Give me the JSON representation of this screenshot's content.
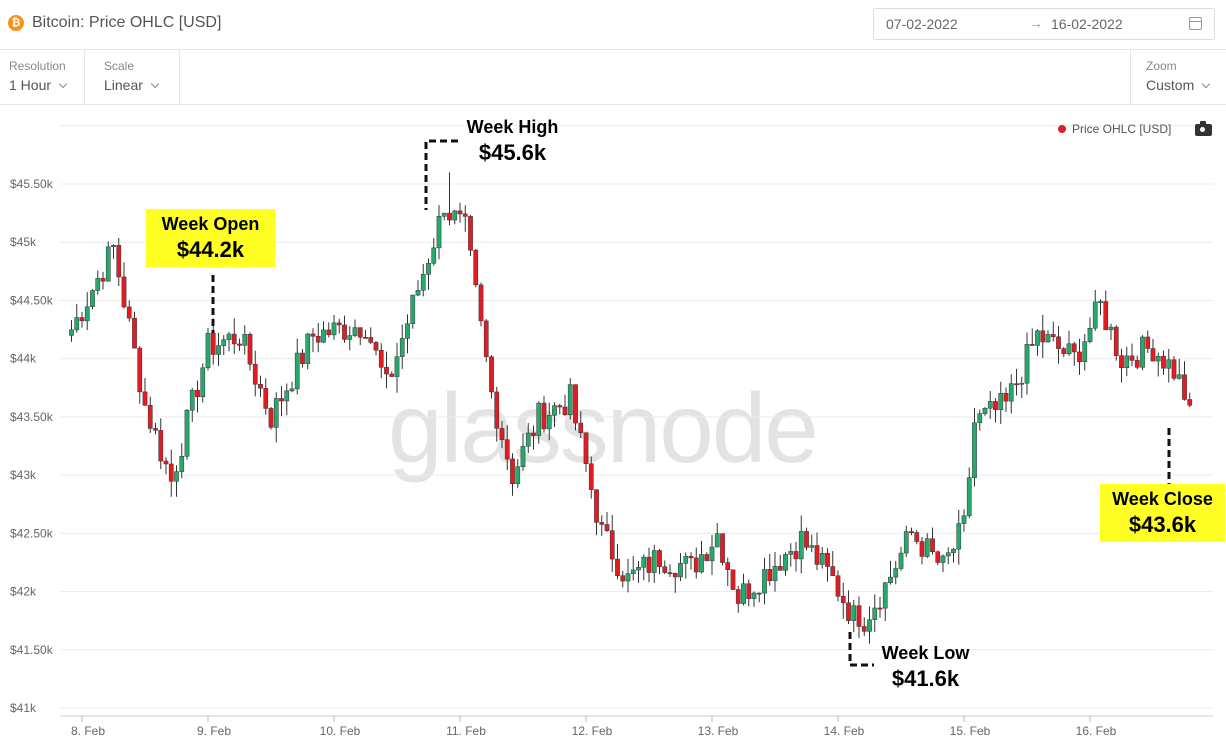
{
  "header": {
    "icon_glyph": "₿",
    "title": "Bitcoin: Price OHLC [USD]",
    "date_start": "07-02-2022",
    "date_arrow": "→",
    "date_end": "16-02-2022"
  },
  "toolbar": {
    "resolution_label": "Resolution",
    "resolution_value": "1 Hour",
    "scale_label": "Scale",
    "scale_value": "Linear",
    "zoom_label": "Zoom",
    "zoom_value": "Custom"
  },
  "legend": {
    "label": "Price OHLC [USD]",
    "color": "#e31b23"
  },
  "watermark": "glassnode",
  "annotations": {
    "open_title": "Week Open",
    "open_value": "$44.2k",
    "high_title": "Week High",
    "high_value": "$45.6k",
    "low_title": "Week Low",
    "low_value": "$41.6k",
    "close_title": "Week Close",
    "close_value": "$43.6k"
  },
  "chart_data": {
    "type": "candlestick",
    "title": "Bitcoin: Price OHLC [USD]",
    "series_name": "Price OHLC [USD]",
    "up_color": "#26a96c",
    "down_color": "#e31b23",
    "ylim": [
      41000,
      46000
    ],
    "y_ticks": [
      {
        "value": 41000,
        "label": "$41k"
      },
      {
        "value": 41500,
        "label": "$41.50k"
      },
      {
        "value": 42000,
        "label": "$42k"
      },
      {
        "value": 42500,
        "label": "$42.50k"
      },
      {
        "value": 43000,
        "label": "$43k"
      },
      {
        "value": 43500,
        "label": "$43.50k"
      },
      {
        "value": 44000,
        "label": "$44k"
      },
      {
        "value": 44500,
        "label": "$44.50k"
      },
      {
        "value": 45000,
        "label": "$45k"
      },
      {
        "value": 45500,
        "label": "$45.50k"
      }
    ],
    "x_ticks": [
      "8. Feb",
      "9. Feb",
      "10. Feb",
      "11. Feb",
      "12. Feb",
      "13. Feb",
      "14. Feb",
      "15. Feb",
      "16. Feb"
    ],
    "x_start": "2022-02-07T22:00",
    "interval_hours": 1,
    "week_open": 44200,
    "week_high": 45600,
    "week_low": 41600,
    "week_close": 43600,
    "anchors": [
      [
        "2022-02-07T22:00",
        44250
      ],
      [
        "2022-02-08T06:00",
        44950
      ],
      [
        "2022-02-08T12:00",
        43600
      ],
      [
        "2022-02-08T17:00",
        42950
      ],
      [
        "2022-02-09T00:00",
        44100
      ],
      [
        "2022-02-09T06:00",
        44200
      ],
      [
        "2022-02-09T12:00",
        43500
      ],
      [
        "2022-02-09T20:00",
        44200
      ],
      [
        "2022-02-10T06:00",
        44300
      ],
      [
        "2022-02-10T10:00",
        43750
      ],
      [
        "2022-02-10T16:00",
        44600
      ],
      [
        "2022-02-10T21:00",
        45300
      ],
      [
        "2022-02-11T01:00",
        45100
      ],
      [
        "2022-02-11T06:00",
        43700
      ],
      [
        "2022-02-11T10:00",
        43000
      ],
      [
        "2022-02-11T15:00",
        43500
      ],
      [
        "2022-02-11T21:00",
        43650
      ],
      [
        "2022-02-12T03:00",
        42500
      ],
      [
        "2022-02-12T08:00",
        42100
      ],
      [
        "2022-02-12T14:00",
        42300
      ],
      [
        "2022-02-12T20:00",
        42200
      ],
      [
        "2022-02-13T01:00",
        42500
      ],
      [
        "2022-02-13T05:00",
        41950
      ],
      [
        "2022-02-13T11:00",
        42200
      ],
      [
        "2022-02-13T17:00",
        42450
      ],
      [
        "2022-02-13T23:00",
        42100
      ],
      [
        "2022-02-14T04:00",
        41700
      ],
      [
        "2022-02-14T09:00",
        42050
      ],
      [
        "2022-02-14T14:00",
        42500
      ],
      [
        "2022-02-14T20:00",
        42200
      ],
      [
        "2022-02-15T00:00",
        42550
      ],
      [
        "2022-02-15T02:00",
        43450
      ],
      [
        "2022-02-15T08:00",
        43600
      ],
      [
        "2022-02-15T14:00",
        44200
      ],
      [
        "2022-02-15T21:00",
        44000
      ],
      [
        "2022-02-16T02:00",
        44450
      ],
      [
        "2022-02-16T06:00",
        44000
      ],
      [
        "2022-02-16T12:00",
        44100
      ],
      [
        "2022-02-16T16:00",
        43900
      ],
      [
        "2022-02-16T19:00",
        43600
      ]
    ]
  }
}
